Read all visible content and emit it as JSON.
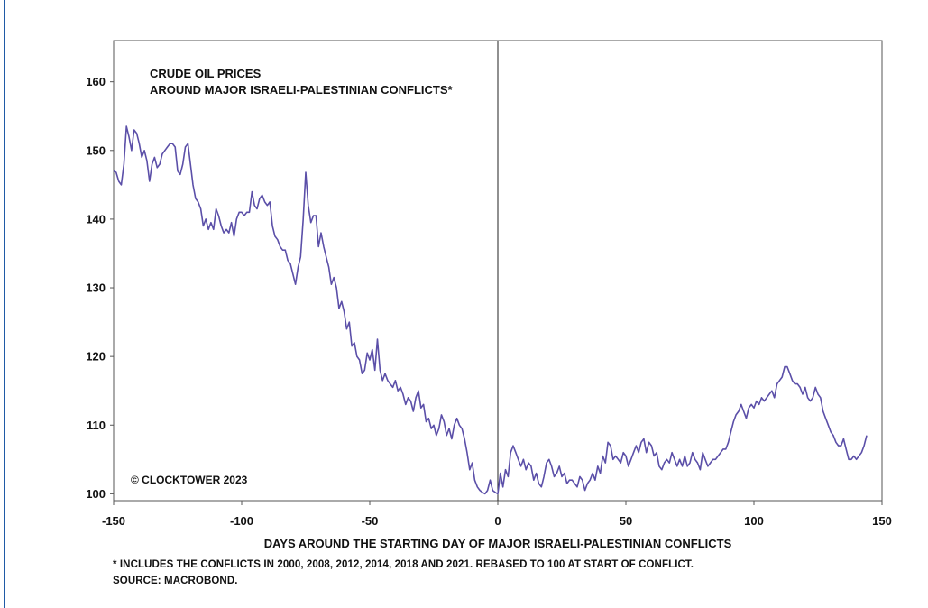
{
  "chart_data": {
    "type": "line",
    "title_lines": [
      "CRUDE OIL PRICES",
      "AROUND MAJOR ISRAELI-PALESTINIAN CONFLICTS*"
    ],
    "xlabel": "DAYS AROUND THE STARTING DAY OF MAJOR ISRAELI-PALESTINIAN CONFLICTS",
    "ylabel": "",
    "xlim": [
      -150,
      150
    ],
    "ylim": [
      99,
      166
    ],
    "x_ticks": [
      -150,
      -100,
      -50,
      0,
      50,
      100,
      150
    ],
    "y_ticks": [
      100,
      110,
      120,
      130,
      140,
      150,
      160
    ],
    "grid": false,
    "vertical_marker_x": 0,
    "line_color": "#5b4fa8",
    "copyright": "© CLOCKTOWER 2023",
    "points": [
      [
        -150,
        147
      ],
      [
        -149,
        146.8
      ],
      [
        -148,
        145.5
      ],
      [
        -147,
        145
      ],
      [
        -146,
        148
      ],
      [
        -145,
        153.5
      ],
      [
        -144,
        152
      ],
      [
        -143,
        150
      ],
      [
        -142,
        153
      ],
      [
        -141,
        152.5
      ],
      [
        -140,
        151
      ],
      [
        -139,
        149
      ],
      [
        -138,
        150
      ],
      [
        -137,
        148.5
      ],
      [
        -136,
        145.5
      ],
      [
        -135,
        148
      ],
      [
        -134,
        149
      ],
      [
        -133,
        147.5
      ],
      [
        -132,
        148
      ],
      [
        -131,
        149.5
      ],
      [
        -130,
        150
      ],
      [
        -129,
        150.5
      ],
      [
        -128,
        151
      ],
      [
        -127,
        151
      ],
      [
        -126,
        150.5
      ],
      [
        -125,
        147
      ],
      [
        -124,
        146.5
      ],
      [
        -123,
        148
      ],
      [
        -122,
        150.5
      ],
      [
        -121,
        151
      ],
      [
        -120,
        148
      ],
      [
        -119,
        145
      ],
      [
        -118,
        143
      ],
      [
        -117,
        142.5
      ],
      [
        -116,
        141.5
      ],
      [
        -115,
        139
      ],
      [
        -114,
        140
      ],
      [
        -113,
        138.5
      ],
      [
        -112,
        139.5
      ],
      [
        -111,
        138.5
      ],
      [
        -110,
        141.5
      ],
      [
        -109,
        140.5
      ],
      [
        -108,
        139
      ],
      [
        -107,
        138
      ],
      [
        -106,
        138.5
      ],
      [
        -105,
        138
      ],
      [
        -104,
        139.5
      ],
      [
        -103,
        137.5
      ],
      [
        -102,
        140
      ],
      [
        -101,
        141
      ],
      [
        -100,
        141
      ],
      [
        -99,
        140.5
      ],
      [
        -98,
        141
      ],
      [
        -97,
        141
      ],
      [
        -96,
        144
      ],
      [
        -95,
        142
      ],
      [
        -94,
        141.5
      ],
      [
        -93,
        143
      ],
      [
        -92,
        143.5
      ],
      [
        -91,
        142.5
      ],
      [
        -90,
        142
      ],
      [
        -89,
        142.5
      ],
      [
        -88,
        139
      ],
      [
        -87,
        137.5
      ],
      [
        -86,
        137
      ],
      [
        -85,
        136
      ],
      [
        -84,
        135.5
      ],
      [
        -83,
        135.5
      ],
      [
        -82,
        134
      ],
      [
        -81,
        133.5
      ],
      [
        -80,
        132
      ],
      [
        -79,
        130.5
      ],
      [
        -78,
        133
      ],
      [
        -77,
        134.5
      ],
      [
        -76,
        140
      ],
      [
        -75,
        146.8
      ],
      [
        -74,
        142
      ],
      [
        -73,
        139.5
      ],
      [
        -72,
        140.5
      ],
      [
        -71,
        140.5
      ],
      [
        -70,
        136
      ],
      [
        -69,
        138
      ],
      [
        -68,
        136
      ],
      [
        -67,
        134.5
      ],
      [
        -66,
        133
      ],
      [
        -65,
        130.5
      ],
      [
        -64,
        131.5
      ],
      [
        -63,
        130
      ],
      [
        -62,
        127
      ],
      [
        -61,
        128
      ],
      [
        -60,
        126.5
      ],
      [
        -59,
        124
      ],
      [
        -58,
        125
      ],
      [
        -57,
        121.5
      ],
      [
        -56,
        122
      ],
      [
        -55,
        120
      ],
      [
        -54,
        119.5
      ],
      [
        -53,
        117.5
      ],
      [
        -52,
        118
      ],
      [
        -51,
        120.5
      ],
      [
        -50,
        119.5
      ],
      [
        -49,
        121
      ],
      [
        -48,
        118
      ],
      [
        -47,
        122.5
      ],
      [
        -46,
        118
      ],
      [
        -45,
        116.5
      ],
      [
        -44,
        117.5
      ],
      [
        -43,
        116.5
      ],
      [
        -42,
        116
      ],
      [
        -41,
        115.5
      ],
      [
        -40,
        116.5
      ],
      [
        -39,
        115
      ],
      [
        -38,
        115.5
      ],
      [
        -37,
        114.5
      ],
      [
        -36,
        113
      ],
      [
        -35,
        114
      ],
      [
        -34,
        113.5
      ],
      [
        -33,
        112
      ],
      [
        -32,
        114
      ],
      [
        -31,
        115
      ],
      [
        -30,
        112.5
      ],
      [
        -29,
        113
      ],
      [
        -28,
        110.5
      ],
      [
        -27,
        111
      ],
      [
        -26,
        109.5
      ],
      [
        -25,
        110
      ],
      [
        -24,
        108.5
      ],
      [
        -23,
        109.5
      ],
      [
        -22,
        111.5
      ],
      [
        -21,
        110.5
      ],
      [
        -20,
        108.5
      ],
      [
        -19,
        109.5
      ],
      [
        -18,
        108
      ],
      [
        -17,
        110
      ],
      [
        -16,
        111
      ],
      [
        -15,
        110
      ],
      [
        -14,
        109.5
      ],
      [
        -13,
        108
      ],
      [
        -12,
        106
      ],
      [
        -11,
        103.5
      ],
      [
        -10,
        104.5
      ],
      [
        -9,
        102
      ],
      [
        -8,
        101
      ],
      [
        -7,
        100.5
      ],
      [
        -6,
        100.2
      ],
      [
        -5,
        100
      ],
      [
        -4,
        100.5
      ],
      [
        -3,
        102
      ],
      [
        -2,
        100.5
      ],
      [
        -1,
        100.2
      ],
      [
        0,
        100
      ],
      [
        1,
        103
      ],
      [
        2,
        101
      ],
      [
        3,
        103.5
      ],
      [
        4,
        102.5
      ],
      [
        5,
        106
      ],
      [
        6,
        107
      ],
      [
        7,
        106
      ],
      [
        8,
        105
      ],
      [
        9,
        104
      ],
      [
        10,
        105
      ],
      [
        11,
        103.5
      ],
      [
        12,
        104.5
      ],
      [
        13,
        104
      ],
      [
        14,
        102
      ],
      [
        15,
        103
      ],
      [
        16,
        101.5
      ],
      [
        17,
        101
      ],
      [
        18,
        102.5
      ],
      [
        19,
        104.5
      ],
      [
        20,
        105
      ],
      [
        21,
        104
      ],
      [
        22,
        102.5
      ],
      [
        23,
        103
      ],
      [
        24,
        104
      ],
      [
        25,
        102.5
      ],
      [
        26,
        103
      ],
      [
        27,
        101.5
      ],
      [
        28,
        102
      ],
      [
        29,
        102
      ],
      [
        30,
        101.5
      ],
      [
        31,
        101
      ],
      [
        32,
        102.5
      ],
      [
        33,
        102
      ],
      [
        34,
        100.5
      ],
      [
        35,
        101.5
      ],
      [
        36,
        102
      ],
      [
        37,
        103
      ],
      [
        38,
        102
      ],
      [
        39,
        104
      ],
      [
        40,
        103
      ],
      [
        41,
        105.5
      ],
      [
        42,
        104.5
      ],
      [
        43,
        107.5
      ],
      [
        44,
        107
      ],
      [
        45,
        105
      ],
      [
        46,
        105.5
      ],
      [
        47,
        105
      ],
      [
        48,
        104.5
      ],
      [
        49,
        106
      ],
      [
        50,
        105.5
      ],
      [
        51,
        104
      ],
      [
        52,
        105
      ],
      [
        53,
        106
      ],
      [
        54,
        107
      ],
      [
        55,
        106
      ],
      [
        56,
        107.5
      ],
      [
        57,
        108
      ],
      [
        58,
        106
      ],
      [
        59,
        107.5
      ],
      [
        60,
        107
      ],
      [
        61,
        105.5
      ],
      [
        62,
        106
      ],
      [
        63,
        104
      ],
      [
        64,
        103.5
      ],
      [
        65,
        104.5
      ],
      [
        66,
        105
      ],
      [
        67,
        104.5
      ],
      [
        68,
        106
      ],
      [
        69,
        105
      ],
      [
        70,
        104
      ],
      [
        71,
        105
      ],
      [
        72,
        104
      ],
      [
        73,
        105.5
      ],
      [
        74,
        104
      ],
      [
        75,
        104.5
      ],
      [
        76,
        106
      ],
      [
        77,
        105
      ],
      [
        78,
        104.5
      ],
      [
        79,
        103.5
      ],
      [
        80,
        106
      ],
      [
        81,
        105
      ],
      [
        82,
        104
      ],
      [
        83,
        104.5
      ],
      [
        84,
        105
      ],
      [
        85,
        105
      ],
      [
        86,
        105.5
      ],
      [
        87,
        106
      ],
      [
        88,
        106.5
      ],
      [
        89,
        106.5
      ],
      [
        90,
        107.5
      ],
      [
        91,
        109
      ],
      [
        92,
        110.5
      ],
      [
        93,
        111.5
      ],
      [
        94,
        112
      ],
      [
        95,
        113
      ],
      [
        96,
        112
      ],
      [
        97,
        111
      ],
      [
        98,
        112.5
      ],
      [
        99,
        113
      ],
      [
        100,
        112.5
      ],
      [
        101,
        113.5
      ],
      [
        102,
        113
      ],
      [
        103,
        114
      ],
      [
        104,
        113.5
      ],
      [
        105,
        114
      ],
      [
        106,
        114.5
      ],
      [
        107,
        115
      ],
      [
        108,
        114
      ],
      [
        109,
        116
      ],
      [
        110,
        116.5
      ],
      [
        111,
        117
      ],
      [
        112,
        118.5
      ],
      [
        113,
        118.5
      ],
      [
        114,
        117.5
      ],
      [
        115,
        116.5
      ],
      [
        116,
        116
      ],
      [
        117,
        116
      ],
      [
        118,
        115.5
      ],
      [
        119,
        114.5
      ],
      [
        120,
        115.5
      ],
      [
        121,
        114
      ],
      [
        122,
        113.5
      ],
      [
        123,
        114
      ],
      [
        124,
        115.5
      ],
      [
        125,
        114.5
      ],
      [
        126,
        114
      ],
      [
        127,
        112
      ],
      [
        128,
        111
      ],
      [
        129,
        110
      ],
      [
        130,
        109
      ],
      [
        131,
        108.5
      ],
      [
        132,
        107.5
      ],
      [
        133,
        107
      ],
      [
        134,
        107
      ],
      [
        135,
        108
      ],
      [
        136,
        106.5
      ],
      [
        137,
        105
      ],
      [
        138,
        105
      ],
      [
        139,
        105.5
      ],
      [
        140,
        105
      ],
      [
        141,
        105.5
      ],
      [
        142,
        106
      ],
      [
        143,
        107
      ],
      [
        144,
        108.5
      ]
    ]
  },
  "footnotes": [
    "* INCLUDES THE CONFLICTS IN 2000, 2008, 2012, 2014, 2018 AND 2021. REBASED TO 100 AT START OF CONFLICT.",
    "SOURCE: MACROBOND."
  ]
}
